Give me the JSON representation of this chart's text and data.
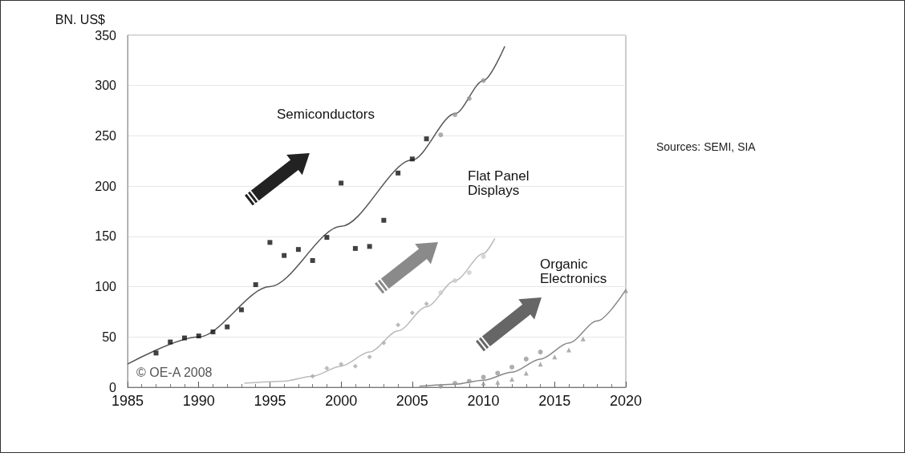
{
  "chart_data": {
    "type": "scatter",
    "ylabel": "BN. US$",
    "xlim": [
      1985,
      2020
    ],
    "xticks": [
      1985,
      1990,
      1995,
      2000,
      2005,
      2010,
      2015,
      2020
    ],
    "ylim": [
      0,
      350
    ],
    "yticks": [
      0,
      50,
      100,
      150,
      200,
      250,
      300,
      350
    ],
    "grid": "y",
    "series": [
      {
        "marker": "square",
        "color": "#111111",
        "x": [
          1987,
          1988,
          1989,
          1990,
          1991,
          1992,
          1993,
          1994,
          1995,
          1996,
          1997,
          1998,
          1999,
          2000,
          2001,
          2002,
          2003,
          2004,
          2005,
          2006
        ],
        "values": [
          34,
          45,
          49,
          51,
          55,
          60,
          77,
          102,
          144,
          131,
          137,
          126,
          149,
          203,
          138,
          140,
          166,
          213,
          227,
          247
        ]
      },
      {
        "type": "scatter",
        "marker": "circle",
        "color": "#999999",
        "x": [
          2007,
          2008,
          2009,
          2010
        ],
        "values": [
          251,
          271,
          287,
          305
        ]
      },
      {
        "type": "line",
        "marker": "none",
        "color": "#555555",
        "x": [
          1985,
          1990,
          1995,
          2000,
          2005,
          2008,
          2010,
          2011.5
        ],
        "values": [
          23,
          50,
          100,
          160,
          226,
          272,
          305,
          339
        ]
      },
      {
        "type": "scatter",
        "marker": "diamond",
        "color": "#aaaaaa",
        "x": [
          1998,
          1999,
          2000,
          2001,
          2002,
          2003,
          2004,
          2005,
          2006
        ],
        "values": [
          11,
          19,
          23,
          21,
          30,
          44,
          62,
          74,
          83
        ]
      },
      {
        "type": "scatter",
        "marker": "circle",
        "color": "#cccccc",
        "x": [
          2007,
          2008,
          2009,
          2010
        ],
        "values": [
          94,
          106,
          114,
          130
        ]
      },
      {
        "type": "line",
        "marker": "none",
        "color": "#bbbbbb",
        "x": [
          1993.2,
          1996,
          1998,
          2000,
          2002,
          2004,
          2006,
          2008,
          2010,
          2010.8
        ],
        "values": [
          4,
          6,
          11,
          21,
          35,
          56,
          80,
          106,
          133,
          148
        ]
      },
      {
        "type": "scatter",
        "marker": "circle",
        "color": "#999999",
        "x": [
          2007,
          2008,
          2009,
          2010,
          2011,
          2012,
          2013,
          2014
        ],
        "values": [
          1,
          4,
          6,
          10,
          14,
          20,
          28,
          35
        ]
      },
      {
        "type": "scatter",
        "marker": "triangle",
        "color": "#999999",
        "x": [
          2010,
          2011,
          2012,
          2013,
          2014,
          2015,
          2016,
          2017,
          2020
        ],
        "values": [
          4,
          5,
          8,
          14,
          23,
          30,
          37,
          48,
          96
        ]
      },
      {
        "type": "line",
        "marker": "none",
        "color": "#888888",
        "x": [
          2005.5,
          2008,
          2010,
          2012,
          2014,
          2016,
          2018,
          2020
        ],
        "values": [
          1,
          3,
          7,
          15,
          28,
          44,
          66,
          97
        ]
      }
    ],
    "annotations": [
      "Semiconductors",
      "Flat Panel\nDisplays",
      "Organic\nElectronics",
      "© OE-A 2008",
      "Sources: SEMI, SIA"
    ]
  }
}
